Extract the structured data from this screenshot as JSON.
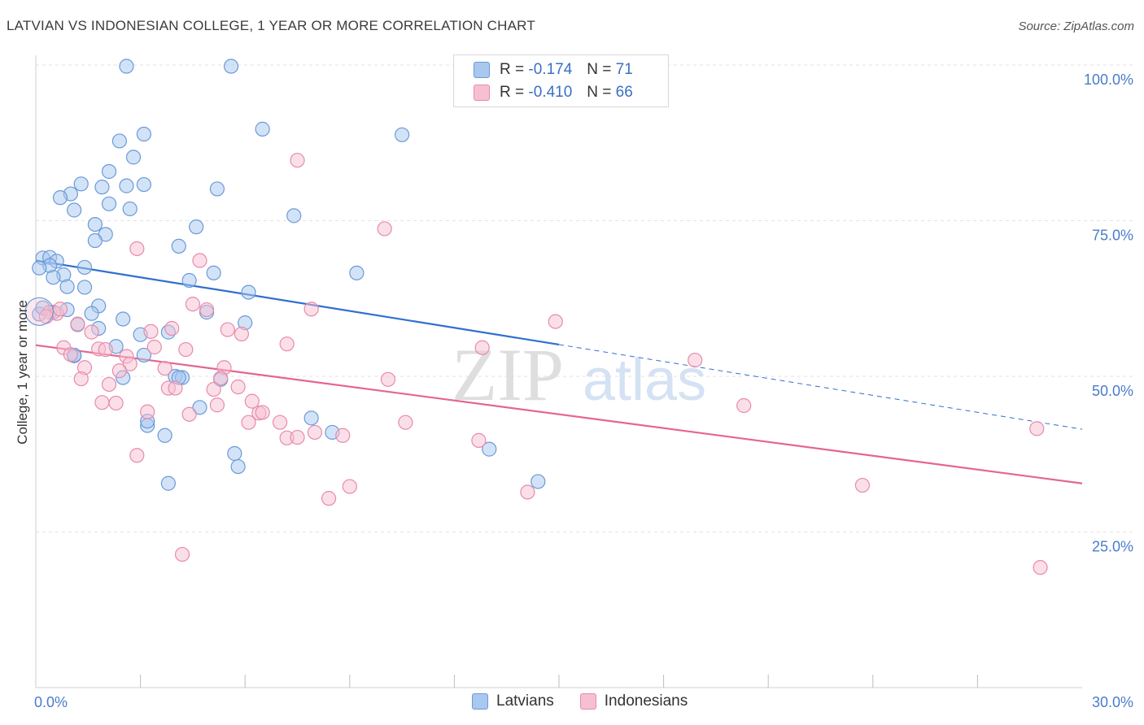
{
  "title": "LATVIAN VS INDONESIAN COLLEGE, 1 YEAR OR MORE CORRELATION CHART",
  "source": "Source: ZipAtlas.com",
  "watermark": {
    "zip": "ZIP",
    "atlas": "atlas"
  },
  "legend": {
    "r_label": "R =",
    "n_label": "N =",
    "rows": [
      {
        "r": "-0.174",
        "n": "71"
      },
      {
        "r": "-0.410",
        "n": "66"
      }
    ]
  },
  "bottom_legend": [
    "Latvians",
    "Indonesians"
  ],
  "colors": {
    "latvian_fill": "#a8c8f0",
    "latvian_stroke": "#6a9ad8",
    "latvian_line": "#2f6fd0",
    "indonesian_fill": "#f7bfd2",
    "indonesian_stroke": "#e88aaa",
    "indonesian_line": "#e4668f",
    "grid": "#e2e2e2",
    "tick_label": "#4a7cc9"
  },
  "chart_data": {
    "type": "scatter",
    "title": "LATVIAN VS INDONESIAN COLLEGE, 1 YEAR OR MORE CORRELATION CHART",
    "xlabel": "",
    "ylabel": "College, 1 year or more",
    "xlim": [
      0,
      30
    ],
    "ylim": [
      0,
      100
    ],
    "x_tick_labels": [
      "0.0%",
      "30.0%"
    ],
    "y_ticks": [
      25,
      50,
      75,
      100
    ],
    "y_tick_labels": [
      "25.0%",
      "50.0%",
      "75.0%",
      "100.0%"
    ],
    "series": [
      {
        "name": "Latvians",
        "r": -0.174,
        "n": 71,
        "trend": {
          "x0": 0,
          "y0": 68.6,
          "x1": 15,
          "y1": 55.1,
          "dash_x1": 30,
          "dash_y1": 41.5
        },
        "points": [
          [
            2.6,
            99.8
          ],
          [
            5.6,
            99.8
          ],
          [
            3.1,
            88.9
          ],
          [
            6.5,
            89.7
          ],
          [
            10.5,
            88.8
          ],
          [
            2.4,
            87.8
          ],
          [
            2.8,
            85.2
          ],
          [
            2.1,
            82.9
          ],
          [
            1.3,
            80.9
          ],
          [
            2.6,
            80.6
          ],
          [
            1.9,
            80.4
          ],
          [
            3.1,
            80.8
          ],
          [
            5.2,
            80.1
          ],
          [
            1.0,
            79.3
          ],
          [
            0.7,
            78.7
          ],
          [
            2.1,
            77.7
          ],
          [
            2.7,
            76.9
          ],
          [
            1.1,
            76.7
          ],
          [
            7.4,
            75.8
          ],
          [
            1.7,
            74.4
          ],
          [
            4.6,
            74.0
          ],
          [
            2.0,
            72.8
          ],
          [
            1.7,
            71.8
          ],
          [
            4.1,
            70.9
          ],
          [
            0.2,
            69.0
          ],
          [
            0.4,
            69.1
          ],
          [
            0.6,
            68.5
          ],
          [
            0.4,
            67.8
          ],
          [
            0.1,
            67.4
          ],
          [
            1.4,
            67.5
          ],
          [
            0.8,
            66.3
          ],
          [
            5.1,
            66.6
          ],
          [
            9.2,
            66.6
          ],
          [
            0.5,
            65.9
          ],
          [
            4.4,
            65.4
          ],
          [
            0.9,
            64.4
          ],
          [
            1.4,
            64.3
          ],
          [
            6.1,
            63.5
          ],
          [
            1.8,
            61.3
          ],
          [
            0.9,
            60.7
          ],
          [
            1.6,
            60.1
          ],
          [
            4.9,
            60.3
          ],
          [
            2.5,
            59.2
          ],
          [
            6.0,
            58.6
          ],
          [
            1.2,
            58.3
          ],
          [
            1.8,
            57.7
          ],
          [
            3.8,
            57.1
          ],
          [
            3.0,
            56.7
          ],
          [
            2.3,
            54.8
          ],
          [
            3.1,
            53.4
          ],
          [
            1.1,
            53.3
          ],
          [
            2.5,
            49.8
          ],
          [
            4.0,
            50.0
          ],
          [
            4.2,
            49.8
          ],
          [
            5.3,
            49.5
          ],
          [
            4.7,
            45.0
          ],
          [
            3.2,
            42.1
          ],
          [
            7.9,
            43.3
          ],
          [
            8.5,
            41.0
          ],
          [
            3.7,
            40.5
          ],
          [
            13.0,
            38.3
          ],
          [
            5.7,
            37.6
          ],
          [
            5.8,
            35.5
          ],
          [
            14.4,
            33.1
          ],
          [
            3.8,
            32.8
          ],
          [
            0.1,
            60.0
          ],
          [
            0.5,
            60.3
          ],
          [
            0.2,
            61.0
          ],
          [
            3.2,
            42.8
          ],
          [
            1.1,
            53.4
          ],
          [
            4.1,
            49.8
          ]
        ]
      },
      {
        "name": "Indonesians",
        "r": -0.41,
        "n": 66,
        "trend": {
          "x0": 0,
          "y0": 55.0,
          "x1": 30,
          "y1": 32.8
        },
        "points": [
          [
            7.5,
            84.7
          ],
          [
            10.0,
            73.7
          ],
          [
            2.9,
            70.5
          ],
          [
            4.7,
            68.6
          ],
          [
            0.4,
            60.3
          ],
          [
            0.6,
            60.1
          ],
          [
            0.3,
            59.6
          ],
          [
            0.7,
            60.8
          ],
          [
            4.5,
            61.6
          ],
          [
            4.9,
            60.7
          ],
          [
            7.9,
            60.8
          ],
          [
            14.9,
            58.8
          ],
          [
            1.2,
            58.4
          ],
          [
            1.6,
            57.1
          ],
          [
            3.3,
            57.2
          ],
          [
            3.9,
            57.7
          ],
          [
            5.5,
            57.5
          ],
          [
            5.9,
            56.8
          ],
          [
            7.2,
            55.2
          ],
          [
            12.8,
            54.6
          ],
          [
            0.8,
            54.6
          ],
          [
            1.8,
            54.4
          ],
          [
            2.0,
            54.3
          ],
          [
            3.4,
            54.7
          ],
          [
            4.3,
            54.3
          ],
          [
            2.6,
            53.2
          ],
          [
            1.0,
            53.5
          ],
          [
            2.7,
            52.0
          ],
          [
            3.7,
            51.3
          ],
          [
            1.4,
            51.4
          ],
          [
            2.4,
            50.9
          ],
          [
            5.4,
            51.4
          ],
          [
            5.3,
            49.7
          ],
          [
            10.1,
            49.5
          ],
          [
            1.3,
            49.6
          ],
          [
            2.1,
            48.7
          ],
          [
            3.8,
            48.1
          ],
          [
            4.0,
            48.1
          ],
          [
            5.8,
            48.3
          ],
          [
            5.1,
            47.9
          ],
          [
            18.9,
            52.6
          ],
          [
            6.2,
            46.0
          ],
          [
            2.3,
            45.7
          ],
          [
            1.9,
            45.8
          ],
          [
            5.2,
            45.4
          ],
          [
            20.3,
            45.3
          ],
          [
            3.2,
            44.3
          ],
          [
            4.4,
            43.9
          ],
          [
            6.4,
            44.1
          ],
          [
            6.5,
            44.2
          ],
          [
            6.1,
            42.6
          ],
          [
            7.0,
            42.6
          ],
          [
            10.6,
            42.6
          ],
          [
            7.2,
            40.1
          ],
          [
            7.5,
            40.2
          ],
          [
            8.0,
            41.0
          ],
          [
            8.8,
            40.5
          ],
          [
            12.7,
            39.7
          ],
          [
            28.7,
            41.6
          ],
          [
            2.9,
            37.3
          ],
          [
            9.0,
            32.3
          ],
          [
            8.4,
            30.4
          ],
          [
            14.1,
            31.4
          ],
          [
            23.7,
            32.5
          ],
          [
            4.2,
            21.4
          ],
          [
            28.8,
            19.3
          ]
        ]
      }
    ]
  }
}
